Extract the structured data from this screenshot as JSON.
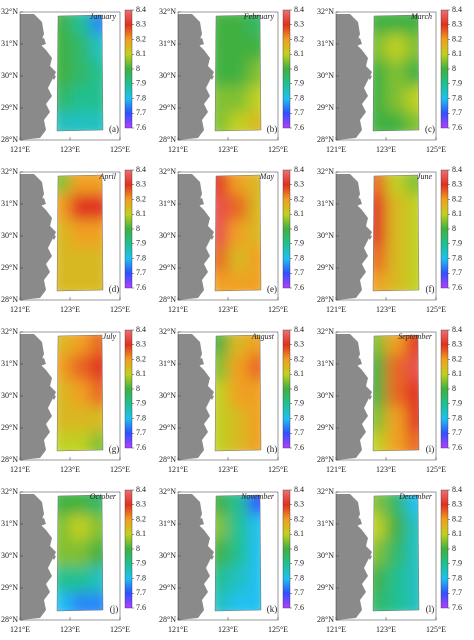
{
  "chart_data": {
    "type": "contour-map",
    "lat_ticks": [
      {
        "value": 32,
        "label": "32°N"
      },
      {
        "value": 31,
        "label": "31°N"
      },
      {
        "value": 30,
        "label": "30°N"
      },
      {
        "value": 29,
        "label": "29°N"
      },
      {
        "value": 28,
        "label": "28°N"
      }
    ],
    "lon_ticks": [
      {
        "value": 121,
        "label": "121°E"
      },
      {
        "value": 123,
        "label": "123°E"
      },
      {
        "value": 125,
        "label": "125°E"
      }
    ],
    "colorbar_lim": [
      7.6,
      8.4
    ],
    "colorbar_ticks": [
      8.4,
      8.3,
      8.2,
      8.1,
      8,
      7.9,
      7.8,
      7.7,
      7.6
    ],
    "panels": [
      {
        "month": "January",
        "label": "(a)",
        "values": [
          [
            8.0,
            7.9,
            7.75
          ],
          [
            8.0,
            7.95,
            7.85
          ],
          [
            8.0,
            7.95,
            7.9
          ],
          [
            7.95,
            7.9,
            7.9
          ],
          [
            7.85,
            7.85,
            7.85
          ]
        ]
      },
      {
        "month": "February",
        "label": "(b)",
        "values": [
          [
            8.0,
            8.0,
            7.95
          ],
          [
            8.0,
            8.0,
            8.0
          ],
          [
            8.0,
            8.0,
            8.05
          ],
          [
            8.05,
            8.05,
            8.1
          ],
          [
            8.05,
            8.1,
            8.15
          ]
        ]
      },
      {
        "month": "March",
        "label": "(c)",
        "values": [
          [
            8.0,
            8.0,
            8.0
          ],
          [
            8.05,
            8.1,
            8.05
          ],
          [
            8.0,
            8.05,
            8.0
          ],
          [
            8.0,
            8.05,
            8.1
          ],
          [
            8.0,
            8.0,
            8.05
          ]
        ]
      },
      {
        "month": "April",
        "label": "(d)",
        "values": [
          [
            8.05,
            8.2,
            8.2
          ],
          [
            8.2,
            8.3,
            8.3
          ],
          [
            8.15,
            8.2,
            8.2
          ],
          [
            8.15,
            8.15,
            8.15
          ],
          [
            8.15,
            8.15,
            8.15
          ]
        ]
      },
      {
        "month": "May",
        "label": "(e)",
        "values": [
          [
            8.3,
            8.2,
            8.15
          ],
          [
            8.35,
            8.25,
            8.15
          ],
          [
            8.35,
            8.2,
            8.15
          ],
          [
            8.25,
            8.15,
            8.2
          ],
          [
            8.2,
            8.2,
            8.2
          ]
        ]
      },
      {
        "month": "June",
        "label": "(f)",
        "values": [
          [
            8.25,
            8.1,
            8.05
          ],
          [
            8.3,
            8.15,
            8.1
          ],
          [
            8.3,
            8.15,
            8.1
          ],
          [
            8.25,
            8.15,
            8.1
          ],
          [
            8.2,
            8.15,
            8.1
          ]
        ]
      },
      {
        "month": "July",
        "label": "(g)",
        "values": [
          [
            8.15,
            8.2,
            8.25
          ],
          [
            8.2,
            8.25,
            8.3
          ],
          [
            8.15,
            8.2,
            8.25
          ],
          [
            8.15,
            8.15,
            8.15
          ],
          [
            8.1,
            8.1,
            8.05
          ]
        ]
      },
      {
        "month": "August",
        "label": "(h)",
        "values": [
          [
            8.0,
            8.15,
            8.2
          ],
          [
            8.05,
            8.2,
            8.25
          ],
          [
            8.1,
            8.2,
            8.2
          ],
          [
            8.1,
            8.15,
            8.2
          ],
          [
            8.1,
            8.15,
            8.2
          ]
        ]
      },
      {
        "month": "September",
        "label": "(i)",
        "values": [
          [
            8.05,
            8.2,
            8.3
          ],
          [
            8.0,
            8.25,
            8.35
          ],
          [
            8.0,
            8.25,
            8.3
          ],
          [
            8.05,
            8.2,
            8.3
          ],
          [
            8.1,
            8.2,
            8.25
          ]
        ]
      },
      {
        "month": "October",
        "label": "(j)",
        "values": [
          [
            8.0,
            8.0,
            7.95
          ],
          [
            8.05,
            8.1,
            8.05
          ],
          [
            8.05,
            8.05,
            8.0
          ],
          [
            7.9,
            7.9,
            7.85
          ],
          [
            7.8,
            7.75,
            7.75
          ]
        ]
      },
      {
        "month": "November",
        "label": "(k)",
        "values": [
          [
            8.0,
            7.9,
            7.7
          ],
          [
            8.05,
            7.9,
            7.8
          ],
          [
            8.0,
            7.9,
            7.8
          ],
          [
            7.9,
            7.85,
            7.8
          ],
          [
            7.85,
            7.8,
            7.8
          ]
        ]
      },
      {
        "month": "December",
        "label": "(l)",
        "values": [
          [
            8.05,
            7.95,
            7.8
          ],
          [
            8.1,
            8.0,
            7.85
          ],
          [
            8.05,
            7.95,
            7.85
          ],
          [
            8.0,
            7.9,
            7.85
          ],
          [
            7.95,
            7.9,
            7.85
          ]
        ]
      }
    ]
  }
}
